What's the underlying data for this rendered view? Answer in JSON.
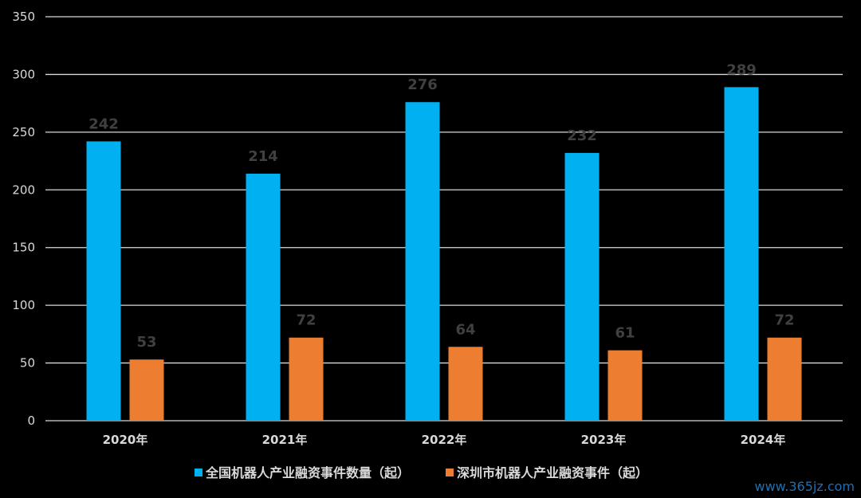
{
  "chart_data": {
    "type": "bar",
    "categories": [
      "2020年",
      "2021年",
      "2022年",
      "2023年",
      "2024年"
    ],
    "series": [
      {
        "name": "全国机器人产业融资事件数量（起）",
        "values": [
          242,
          214,
          276,
          232,
          289
        ],
        "color": "#00b0f0"
      },
      {
        "name": "深圳市机器人产业融资事件（起）",
        "values": [
          53,
          72,
          64,
          61,
          72
        ],
        "color": "#ed7d31"
      }
    ],
    "title": "",
    "xlabel": "",
    "ylabel": "",
    "ylim": [
      0,
      350
    ],
    "yticks": [
      "0",
      "50",
      "100",
      "150",
      "200",
      "250",
      "300",
      "350"
    ],
    "grid": true,
    "legend": "bottom",
    "data_labels": true
  },
  "watermark": "www.365jz.com",
  "colors": {
    "background": "#000000",
    "gridline": "#d9d9d9",
    "tick_text": "#d9d9d9",
    "data_label": "#404040"
  }
}
